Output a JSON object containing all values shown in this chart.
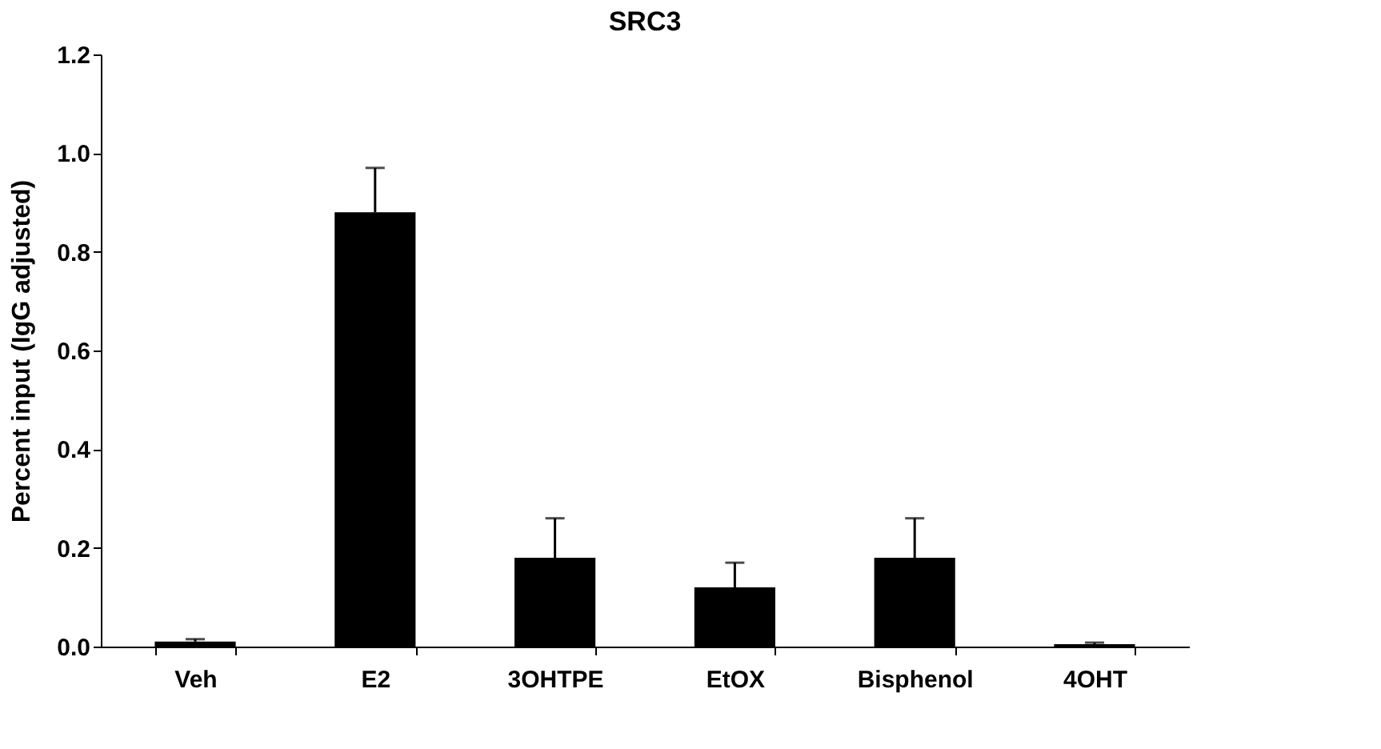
{
  "chart_data": {
    "type": "bar",
    "title": "SRC3",
    "ylabel": "Percent input (IgG adjusted)",
    "categories": [
      "Veh",
      "E2",
      "3OHTPE",
      "EtOX",
      "Bisphenol",
      "4OHT"
    ],
    "values": [
      0.01,
      0.88,
      0.18,
      0.12,
      0.18,
      0.005
    ],
    "errors": [
      [
        0.01,
        0.015
      ],
      [
        0.88,
        0.97
      ],
      [
        0.18,
        0.26
      ],
      [
        0.12,
        0.17
      ],
      [
        0.18,
        0.26
      ],
      [
        0.005,
        0.008
      ]
    ],
    "color": "#000000",
    "ylim": [
      0,
      1.2
    ],
    "yticks": [
      {
        "value": 0,
        "label": "0.0"
      },
      {
        "value": 0.2,
        "label": "0.2"
      },
      {
        "value": 0.4,
        "label": "0.4"
      },
      {
        "value": 0.6,
        "label": "0.6"
      },
      {
        "value": 0.8,
        "label": "0.8"
      },
      {
        "value": 1.0,
        "label": "1.0"
      },
      {
        "value": 1.2,
        "label": "1.2"
      }
    ],
    "grid": false
  }
}
